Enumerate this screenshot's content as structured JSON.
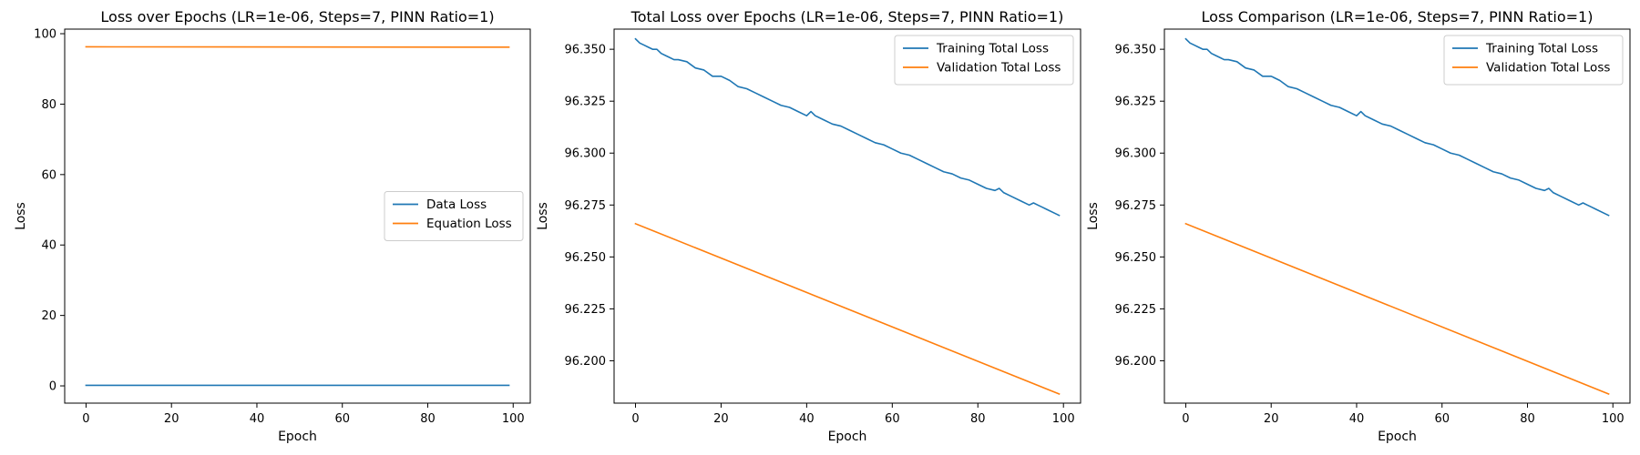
{
  "chart_data": [
    {
      "type": "line",
      "title": "Loss over Epochs (LR=1e-06, Steps=7, PINN Ratio=1)",
      "xlabel": "Epoch",
      "ylabel": "Loss",
      "xlim": [
        -5,
        104
      ],
      "ylim": [
        -4.9,
        101.3
      ],
      "xticks": [
        0,
        20,
        40,
        60,
        80,
        100
      ],
      "yticks": [
        0,
        20,
        40,
        60,
        80,
        100
      ],
      "tick_decimals": 0,
      "legend_position": "center-right",
      "series": [
        {
          "name": "Data Loss",
          "color": "#1f77b4",
          "x": [
            0,
            99
          ],
          "y": [
            0.15,
            0.15
          ]
        },
        {
          "name": "Equation Loss",
          "color": "#ff7f0e",
          "x": [
            0,
            99
          ],
          "y": [
            96.27,
            96.18
          ]
        }
      ]
    },
    {
      "type": "line",
      "title": "Total Loss over Epochs (LR=1e-06, Steps=7, PINN Ratio=1)",
      "xlabel": "Epoch",
      "ylabel": "Loss",
      "xlim": [
        -5,
        104
      ],
      "ylim": [
        96.1796,
        96.3597
      ],
      "xticks": [
        0,
        20,
        40,
        60,
        80,
        100
      ],
      "yticks": [
        96.2,
        96.225,
        96.25,
        96.275,
        96.3,
        96.325,
        96.35
      ],
      "tick_decimals": 3,
      "legend_position": "top-right",
      "series": [
        {
          "name": "Training Total Loss",
          "color": "#1f77b4",
          "x": [
            0,
            1,
            2,
            3,
            4,
            5,
            6,
            7,
            8,
            9,
            10,
            12,
            14,
            16,
            18,
            20,
            22,
            24,
            26,
            28,
            30,
            32,
            34,
            36,
            38,
            40,
            41,
            42,
            44,
            46,
            48,
            50,
            52,
            54,
            56,
            58,
            60,
            62,
            64,
            66,
            68,
            70,
            72,
            74,
            76,
            78,
            80,
            82,
            84,
            85,
            86,
            88,
            90,
            92,
            93,
            94,
            95,
            96,
            98,
            99
          ],
          "y": [
            96.355,
            96.353,
            96.352,
            96.351,
            96.35,
            96.35,
            96.348,
            96.347,
            96.346,
            96.345,
            96.345,
            96.344,
            96.341,
            96.34,
            96.337,
            96.337,
            96.335,
            96.332,
            96.331,
            96.329,
            96.327,
            96.325,
            96.323,
            96.322,
            96.32,
            96.318,
            96.32,
            96.318,
            96.316,
            96.314,
            96.313,
            96.311,
            96.309,
            96.307,
            96.305,
            96.304,
            96.302,
            96.3,
            96.299,
            96.297,
            96.295,
            96.293,
            96.291,
            96.29,
            96.288,
            96.287,
            96.285,
            96.283,
            96.282,
            96.283,
            96.281,
            96.279,
            96.277,
            96.275,
            96.276,
            96.275,
            96.274,
            96.273,
            96.271,
            96.27
          ]
        },
        {
          "name": "Validation Total Loss",
          "color": "#ff7f0e",
          "x": [
            0,
            99
          ],
          "y": [
            96.266,
            96.184
          ]
        }
      ]
    },
    {
      "type": "line",
      "title": "Loss Comparison (LR=1e-06, Steps=7, PINN Ratio=1)",
      "xlabel": "Epoch",
      "ylabel": "Loss",
      "xlim": [
        -5,
        104
      ],
      "ylim": [
        96.1796,
        96.3597
      ],
      "xticks": [
        0,
        20,
        40,
        60,
        80,
        100
      ],
      "yticks": [
        96.2,
        96.225,
        96.25,
        96.275,
        96.3,
        96.325,
        96.35
      ],
      "tick_decimals": 3,
      "legend_position": "top-right",
      "series": [
        {
          "name": "Training Total Loss",
          "color": "#1f77b4",
          "x": [
            0,
            1,
            2,
            3,
            4,
            5,
            6,
            7,
            8,
            9,
            10,
            12,
            14,
            16,
            18,
            20,
            22,
            24,
            26,
            28,
            30,
            32,
            34,
            36,
            38,
            40,
            41,
            42,
            44,
            46,
            48,
            50,
            52,
            54,
            56,
            58,
            60,
            62,
            64,
            66,
            68,
            70,
            72,
            74,
            76,
            78,
            80,
            82,
            84,
            85,
            86,
            88,
            90,
            92,
            93,
            94,
            95,
            96,
            98,
            99
          ],
          "y": [
            96.355,
            96.353,
            96.352,
            96.351,
            96.35,
            96.35,
            96.348,
            96.347,
            96.346,
            96.345,
            96.345,
            96.344,
            96.341,
            96.34,
            96.337,
            96.337,
            96.335,
            96.332,
            96.331,
            96.329,
            96.327,
            96.325,
            96.323,
            96.322,
            96.32,
            96.318,
            96.32,
            96.318,
            96.316,
            96.314,
            96.313,
            96.311,
            96.309,
            96.307,
            96.305,
            96.304,
            96.302,
            96.3,
            96.299,
            96.297,
            96.295,
            96.293,
            96.291,
            96.29,
            96.288,
            96.287,
            96.285,
            96.283,
            96.282,
            96.283,
            96.281,
            96.279,
            96.277,
            96.275,
            96.276,
            96.275,
            96.274,
            96.273,
            96.271,
            96.27
          ]
        },
        {
          "name": "Validation Total Loss",
          "color": "#ff7f0e",
          "x": [
            0,
            99
          ],
          "y": [
            96.266,
            96.184
          ]
        }
      ]
    }
  ]
}
